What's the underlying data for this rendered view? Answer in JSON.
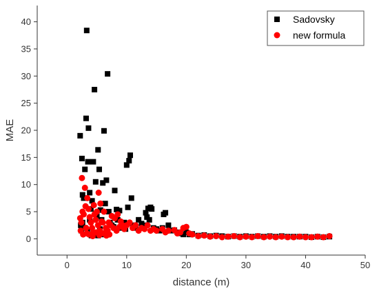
{
  "chart_data": {
    "type": "scatter",
    "xlabel": "distance (m)",
    "ylabel": "MAE",
    "xlim": [
      -5,
      50
    ],
    "ylim": [
      -3,
      43
    ],
    "xticks": [
      0,
      10,
      20,
      30,
      40,
      50
    ],
    "yticks": [
      0,
      5,
      10,
      15,
      20,
      25,
      30,
      35,
      40
    ],
    "grid": false,
    "legend_position": "top-right",
    "series": [
      {
        "name": "Sadovsky",
        "marker": "square",
        "color": "#000000",
        "points": [
          [
            2.2,
            19.0
          ],
          [
            2.5,
            14.8
          ],
          [
            2.6,
            8.1
          ],
          [
            2.8,
            7.5
          ],
          [
            3.0,
            12.8
          ],
          [
            3.2,
            22.2
          ],
          [
            3.3,
            38.4
          ],
          [
            3.5,
            14.2
          ],
          [
            3.6,
            20.4
          ],
          [
            3.8,
            8.5
          ],
          [
            4.0,
            5.5
          ],
          [
            4.2,
            7.0
          ],
          [
            4.4,
            14.2
          ],
          [
            4.6,
            27.5
          ],
          [
            4.8,
            10.5
          ],
          [
            5.0,
            4.2
          ],
          [
            5.2,
            16.4
          ],
          [
            5.4,
            12.8
          ],
          [
            5.6,
            5.3
          ],
          [
            5.8,
            3.5
          ],
          [
            6.0,
            10.3
          ],
          [
            6.2,
            19.9
          ],
          [
            6.4,
            6.5
          ],
          [
            6.6,
            10.8
          ],
          [
            6.8,
            30.4
          ],
          [
            7.0,
            5.0
          ],
          [
            7.2,
            3.0
          ],
          [
            7.5,
            2.5
          ],
          [
            7.8,
            2.2
          ],
          [
            8.0,
            8.9
          ],
          [
            8.3,
            5.4
          ],
          [
            8.5,
            3.5
          ],
          [
            8.8,
            5.2
          ],
          [
            9.0,
            2.0
          ],
          [
            9.3,
            2.5
          ],
          [
            9.6,
            3.0
          ],
          [
            9.8,
            1.8
          ],
          [
            10.0,
            13.6
          ],
          [
            10.2,
            5.8
          ],
          [
            10.4,
            14.4
          ],
          [
            10.6,
            15.4
          ],
          [
            10.8,
            7.5
          ],
          [
            11.0,
            2.5
          ],
          [
            11.5,
            2.0
          ],
          [
            12.0,
            3.5
          ],
          [
            12.5,
            2.8
          ],
          [
            13.0,
            2.5
          ],
          [
            13.2,
            4.8
          ],
          [
            13.4,
            4.0
          ],
          [
            13.6,
            5.6
          ],
          [
            13.8,
            3.5
          ],
          [
            14.0,
            5.8
          ],
          [
            14.2,
            5.5
          ],
          [
            14.5,
            2.0
          ],
          [
            15.0,
            1.8
          ],
          [
            15.5,
            1.5
          ],
          [
            16.0,
            2.0
          ],
          [
            16.2,
            4.5
          ],
          [
            16.5,
            4.8
          ],
          [
            17.0,
            2.5
          ],
          [
            17.5,
            1.5
          ],
          [
            18.0,
            1.6
          ],
          [
            18.5,
            1.2
          ],
          [
            19.0,
            1.0
          ],
          [
            19.5,
            0.8
          ],
          [
            20.0,
            1.2
          ],
          [
            20.5,
            0.8
          ],
          [
            21.0,
            0.9
          ],
          [
            22.0,
            0.6
          ],
          [
            23.0,
            0.7
          ],
          [
            24.0,
            0.5
          ],
          [
            25.0,
            0.6
          ],
          [
            26.0,
            0.5
          ],
          [
            27.0,
            0.4
          ],
          [
            28.0,
            0.5
          ],
          [
            29.0,
            0.4
          ],
          [
            30.0,
            0.5
          ],
          [
            31.0,
            0.4
          ],
          [
            32.0,
            0.5
          ],
          [
            33.0,
            0.4
          ],
          [
            34.0,
            0.5
          ],
          [
            35.0,
            0.4
          ],
          [
            36.0,
            0.5
          ],
          [
            37.0,
            0.4
          ],
          [
            38.0,
            0.4
          ],
          [
            39.0,
            0.4
          ],
          [
            40.0,
            0.4
          ],
          [
            41.0,
            0.3
          ],
          [
            42.0,
            0.4
          ],
          [
            43.0,
            0.3
          ],
          [
            44.0,
            0.4
          ],
          [
            2.3,
            2.5
          ],
          [
            2.4,
            1.5
          ],
          [
            2.6,
            3.0
          ],
          [
            3.0,
            2.0
          ],
          [
            3.4,
            1.5
          ],
          [
            3.8,
            3.5
          ],
          [
            4.1,
            0.6
          ],
          [
            4.4,
            1.0
          ],
          [
            4.8,
            1.0
          ],
          [
            5.2,
            0.6
          ],
          [
            5.5,
            1.8
          ],
          [
            5.9,
            0.8
          ],
          [
            6.3,
            0.8
          ],
          [
            6.7,
            1.2
          ]
        ]
      },
      {
        "name": "new formula",
        "marker": "circle",
        "color": "#ff0000",
        "points": [
          [
            2.2,
            3.8
          ],
          [
            2.4,
            3.0
          ],
          [
            2.5,
            11.2
          ],
          [
            2.6,
            5.0
          ],
          [
            2.8,
            4.5
          ],
          [
            3.0,
            9.4
          ],
          [
            3.1,
            6.0
          ],
          [
            3.2,
            2.0
          ],
          [
            3.4,
            7.5
          ],
          [
            3.6,
            5.5
          ],
          [
            3.8,
            4.0
          ],
          [
            4.0,
            3.0
          ],
          [
            4.2,
            2.0
          ],
          [
            4.4,
            1.2
          ],
          [
            4.5,
            6.2
          ],
          [
            4.6,
            4.5
          ],
          [
            4.8,
            3.5
          ],
          [
            5.0,
            5.0
          ],
          [
            5.2,
            2.5
          ],
          [
            5.3,
            8.5
          ],
          [
            5.5,
            1.5
          ],
          [
            5.6,
            6.5
          ],
          [
            5.8,
            3.2
          ],
          [
            6.0,
            3.0
          ],
          [
            6.2,
            5.0
          ],
          [
            6.5,
            2.0
          ],
          [
            6.8,
            1.5
          ],
          [
            7.0,
            3.0
          ],
          [
            7.3,
            2.5
          ],
          [
            7.5,
            4.2
          ],
          [
            7.8,
            2.0
          ],
          [
            8.0,
            3.8
          ],
          [
            8.3,
            1.5
          ],
          [
            8.5,
            4.5
          ],
          [
            8.8,
            2.2
          ],
          [
            9.0,
            3.2
          ],
          [
            9.3,
            2.5
          ],
          [
            9.6,
            1.8
          ],
          [
            10.0,
            2.5
          ],
          [
            10.5,
            3.0
          ],
          [
            11.0,
            2.0
          ],
          [
            11.5,
            2.5
          ],
          [
            12.0,
            1.5
          ],
          [
            12.5,
            2.0
          ],
          [
            13.0,
            1.8
          ],
          [
            13.5,
            2.5
          ],
          [
            14.0,
            1.5
          ],
          [
            14.5,
            1.8
          ],
          [
            15.0,
            1.5
          ],
          [
            16.0,
            1.8
          ],
          [
            16.5,
            1.2
          ],
          [
            17.0,
            1.5
          ],
          [
            18.0,
            1.6
          ],
          [
            18.5,
            1.0
          ],
          [
            19.0,
            1.2
          ],
          [
            19.5,
            2.0
          ],
          [
            20.0,
            2.2
          ],
          [
            20.5,
            1.0
          ],
          [
            21.0,
            0.8
          ],
          [
            22.0,
            0.5
          ],
          [
            23.0,
            0.6
          ],
          [
            24.0,
            0.4
          ],
          [
            25.0,
            0.5
          ],
          [
            26.0,
            0.3
          ],
          [
            27.0,
            0.4
          ],
          [
            28.0,
            0.5
          ],
          [
            29.0,
            0.3
          ],
          [
            30.0,
            0.4
          ],
          [
            31.0,
            0.3
          ],
          [
            32.0,
            0.5
          ],
          [
            33.0,
            0.3
          ],
          [
            34.0,
            0.4
          ],
          [
            35.0,
            0.3
          ],
          [
            36.0,
            0.4
          ],
          [
            37.0,
            0.3
          ],
          [
            38.0,
            0.3
          ],
          [
            39.0,
            0.4
          ],
          [
            40.0,
            0.3
          ],
          [
            41.0,
            0.3
          ],
          [
            42.0,
            0.4
          ],
          [
            43.0,
            0.3
          ],
          [
            44.0,
            0.5
          ],
          [
            2.3,
            1.5
          ],
          [
            2.7,
            0.8
          ],
          [
            3.3,
            1.0
          ],
          [
            3.7,
            0.8
          ],
          [
            4.3,
            0.5
          ],
          [
            4.9,
            1.2
          ],
          [
            5.4,
            0.7
          ],
          [
            6.1,
            1.0
          ],
          [
            6.6,
            0.6
          ],
          [
            7.1,
            0.8
          ]
        ]
      }
    ]
  }
}
